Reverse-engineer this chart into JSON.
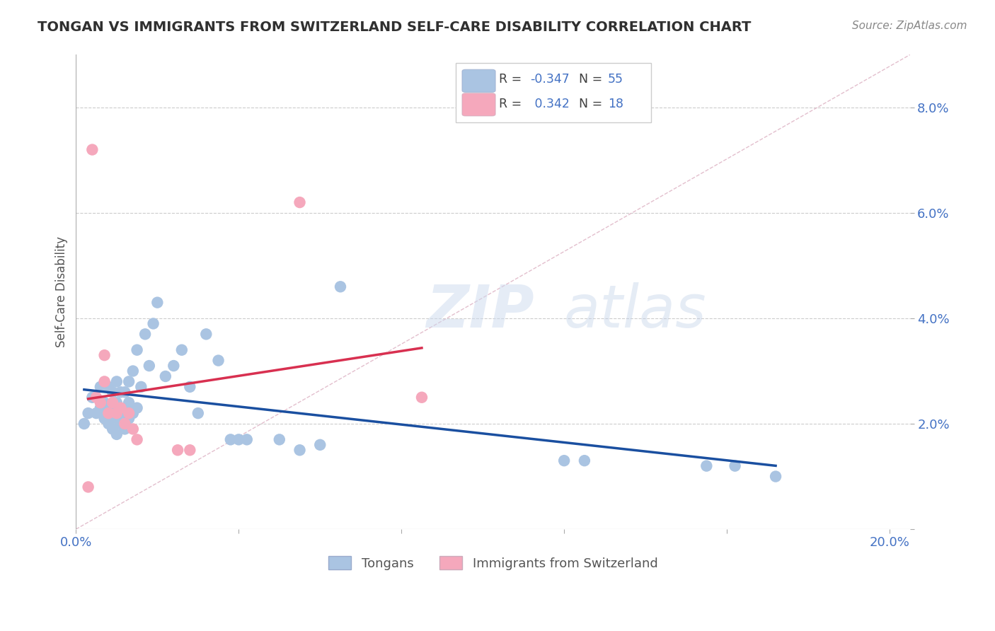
{
  "title": "TONGAN VS IMMIGRANTS FROM SWITZERLAND SELF-CARE DISABILITY CORRELATION CHART",
  "source": "Source: ZipAtlas.com",
  "ylabel": "Self-Care Disability",
  "xlim": [
    0.0,
    0.205
  ],
  "ylim": [
    0.0,
    0.09
  ],
  "ytick_vals": [
    0.0,
    0.02,
    0.04,
    0.06,
    0.08
  ],
  "ytick_labels": [
    "",
    "2.0%",
    "4.0%",
    "6.0%",
    "8.0%"
  ],
  "xtick_vals": [
    0.0,
    0.04,
    0.08,
    0.12,
    0.16,
    0.2
  ],
  "xtick_labels": [
    "0.0%",
    "",
    "",
    "",
    "",
    "20.0%"
  ],
  "blue_r": -0.347,
  "blue_n": 55,
  "pink_r": 0.342,
  "pink_n": 18,
  "blue_color": "#aac4e2",
  "pink_color": "#f5a8bc",
  "blue_line_color": "#1a4fa0",
  "pink_line_color": "#d83050",
  "diag_line_color": "#e0b8c8",
  "label_color": "#4472c4",
  "title_color": "#303030",
  "grid_color": "#cccccc",
  "watermark_zip": "ZIP",
  "watermark_atlas": "atlas",
  "blue_x": [
    0.002,
    0.003,
    0.004,
    0.005,
    0.006,
    0.006,
    0.007,
    0.007,
    0.008,
    0.008,
    0.008,
    0.009,
    0.009,
    0.009,
    0.01,
    0.01,
    0.01,
    0.01,
    0.011,
    0.011,
    0.011,
    0.012,
    0.012,
    0.012,
    0.013,
    0.013,
    0.013,
    0.014,
    0.014,
    0.015,
    0.015,
    0.016,
    0.017,
    0.018,
    0.019,
    0.02,
    0.022,
    0.024,
    0.026,
    0.028,
    0.03,
    0.032,
    0.035,
    0.038,
    0.04,
    0.042,
    0.05,
    0.055,
    0.06,
    0.065,
    0.12,
    0.125,
    0.155,
    0.162,
    0.172
  ],
  "blue_y": [
    0.02,
    0.022,
    0.025,
    0.022,
    0.023,
    0.027,
    0.021,
    0.024,
    0.02,
    0.023,
    0.027,
    0.019,
    0.022,
    0.026,
    0.018,
    0.021,
    0.024,
    0.028,
    0.02,
    0.023,
    0.026,
    0.019,
    0.022,
    0.026,
    0.021,
    0.024,
    0.028,
    0.022,
    0.03,
    0.023,
    0.034,
    0.027,
    0.037,
    0.031,
    0.039,
    0.043,
    0.029,
    0.031,
    0.034,
    0.027,
    0.022,
    0.037,
    0.032,
    0.017,
    0.017,
    0.017,
    0.017,
    0.015,
    0.016,
    0.046,
    0.013,
    0.013,
    0.012,
    0.012,
    0.01
  ],
  "pink_x": [
    0.003,
    0.004,
    0.005,
    0.006,
    0.007,
    0.007,
    0.008,
    0.009,
    0.01,
    0.011,
    0.012,
    0.013,
    0.014,
    0.015,
    0.025,
    0.028,
    0.055,
    0.085
  ],
  "pink_y": [
    0.008,
    0.072,
    0.025,
    0.024,
    0.033,
    0.028,
    0.022,
    0.024,
    0.022,
    0.023,
    0.02,
    0.022,
    0.019,
    0.017,
    0.015,
    0.015,
    0.062,
    0.025
  ]
}
